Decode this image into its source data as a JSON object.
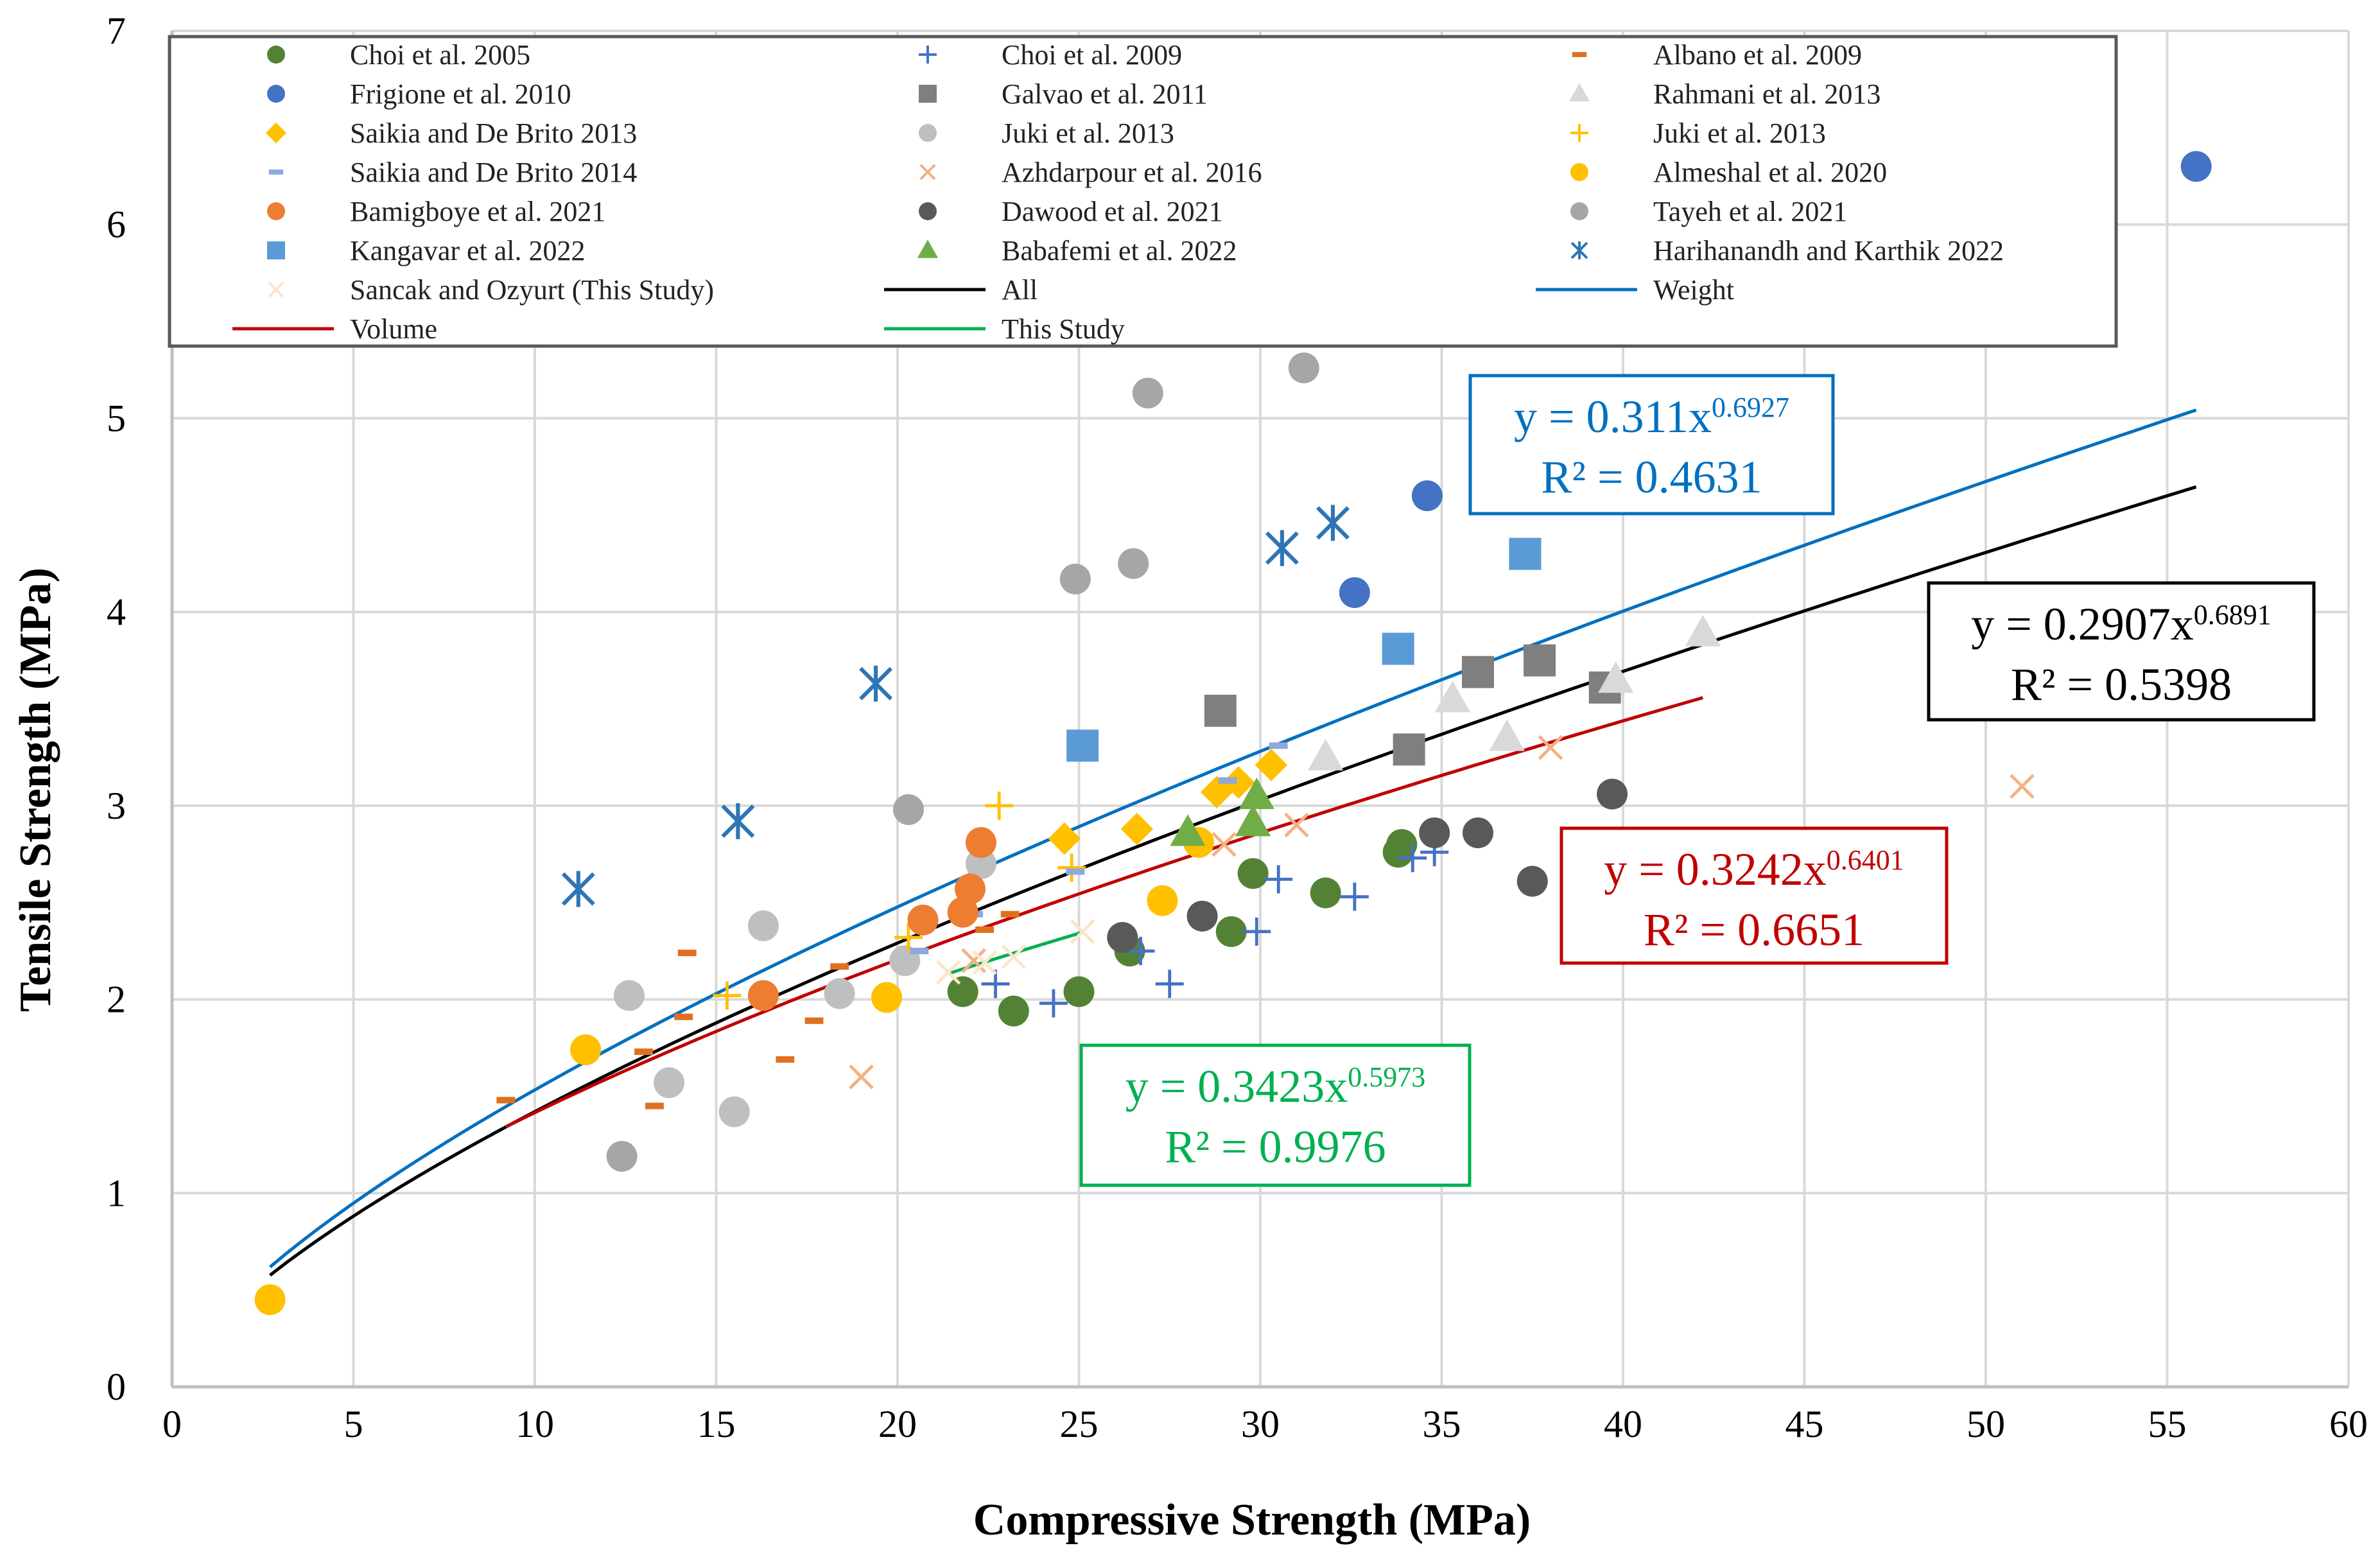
{
  "chart_data": {
    "type": "scatter",
    "xlabel": "Compressive Strength (MPa)",
    "ylabel": "Tensile Strength (MPa)",
    "xlim": [
      0,
      60
    ],
    "ylim": [
      0,
      7
    ],
    "x_ticks": [
      "0",
      "5",
      "10",
      "15",
      "20",
      "25",
      "30",
      "35",
      "40",
      "45",
      "50",
      "55",
      "60"
    ],
    "y_ticks": [
      "0",
      "1",
      "2",
      "3",
      "4",
      "5",
      "6",
      "7"
    ],
    "grid": true,
    "legend": "top",
    "series": [
      {
        "name": "Choi et al. 2005",
        "marker": "circle",
        "color": "#548235",
        "points": [
          [
            21.8,
            2.04
          ],
          [
            23.2,
            1.94
          ],
          [
            25,
            2.04
          ],
          [
            26.4,
            2.25
          ],
          [
            29.2,
            2.35
          ],
          [
            29.8,
            2.65
          ],
          [
            31.8,
            2.55
          ],
          [
            33.8,
            2.76
          ],
          [
            33.9,
            2.8
          ]
        ]
      },
      {
        "name": "Choi et al. 2009",
        "marker": "plus",
        "color": "#4472C4",
        "points": [
          [
            22.7,
            2.08
          ],
          [
            24.3,
            1.98
          ],
          [
            26.7,
            2.25
          ],
          [
            27.5,
            2.08
          ],
          [
            29.9,
            2.35
          ],
          [
            30.5,
            2.62
          ],
          [
            32.6,
            2.53
          ],
          [
            34.2,
            2.73
          ],
          [
            34.8,
            2.76
          ]
        ]
      },
      {
        "name": "Albano et al. 2009",
        "marker": "dash",
        "color": "#E07020",
        "points": [
          [
            9.2,
            1.48
          ],
          [
            13,
            1.73
          ],
          [
            13.3,
            1.45
          ],
          [
            14.1,
            1.91
          ],
          [
            14.2,
            2.24
          ],
          [
            16.9,
            1.69
          ],
          [
            17.7,
            1.89
          ],
          [
            18.4,
            2.17
          ],
          [
            22.4,
            2.36
          ],
          [
            23.1,
            2.44
          ]
        ]
      },
      {
        "name": "Frigione et al. 2010",
        "marker": "circle",
        "color": "#4472C4",
        "points": [
          [
            32.6,
            4.1
          ],
          [
            34.6,
            4.6
          ],
          [
            55.8,
            6.3
          ]
        ]
      },
      {
        "name": "Galvao et al. 2011",
        "marker": "square",
        "color": "#7F7F7F",
        "points": [
          [
            28.9,
            3.49
          ],
          [
            34.1,
            3.29
          ],
          [
            36,
            3.69
          ],
          [
            37.7,
            3.75
          ],
          [
            39.5,
            3.61
          ]
        ]
      },
      {
        "name": "Rahmani et al. 2013",
        "marker": "triangle",
        "color": "#D9D9D9",
        "points": [
          [
            31.8,
            3.25
          ],
          [
            35.3,
            3.55
          ],
          [
            36.8,
            3.35
          ],
          [
            39.8,
            3.65
          ],
          [
            42.2,
            3.89
          ]
        ]
      },
      {
        "name": "Saikia and De Brito 2013",
        "marker": "diamond",
        "color": "#FFC000",
        "points": [
          [
            24.6,
            2.83
          ],
          [
            26.6,
            2.88
          ],
          [
            28.8,
            3.07
          ],
          [
            29.4,
            3.12
          ],
          [
            30.3,
            3.21
          ]
        ]
      },
      {
        "name": "Juki et al. 2013",
        "marker": "circle",
        "color": "#BFBFBF",
        "points": [
          [
            12.6,
            2.02
          ],
          [
            13.7,
            1.57
          ],
          [
            15.5,
            1.42
          ],
          [
            16.3,
            2.38
          ],
          [
            18.4,
            2.03
          ],
          [
            20.2,
            2.2
          ],
          [
            22.3,
            2.7
          ]
        ]
      },
      {
        "name": "Juki et al. 2013",
        "marker": "plus",
        "color": "#FFC000",
        "points": [
          [
            15.3,
            2.02
          ],
          [
            20.3,
            2.32
          ],
          [
            22.8,
            3.0
          ],
          [
            24.8,
            2.68
          ]
        ]
      },
      {
        "name": "Saikia and De Brito 2014",
        "marker": "dash",
        "color": "#8EA9DB",
        "points": [
          [
            20.6,
            2.25
          ],
          [
            22.1,
            2.44
          ],
          [
            24.9,
            2.66
          ],
          [
            29.1,
            3.13
          ],
          [
            30.5,
            3.31
          ]
        ]
      },
      {
        "name": "Azhdarpour et al. 2016",
        "marker": "x",
        "color": "#F4B183",
        "points": [
          [
            19,
            1.6
          ],
          [
            22.1,
            2.2
          ],
          [
            29,
            2.8
          ],
          [
            31,
            2.9
          ],
          [
            38,
            3.3
          ],
          [
            51,
            3.1
          ]
        ]
      },
      {
        "name": "Almeshal et al. 2020",
        "marker": "circle",
        "color": "#FFC000",
        "points": [
          [
            2.7,
            0.45
          ],
          [
            11.4,
            1.74
          ],
          [
            19.7,
            2.01
          ],
          [
            27.3,
            2.51
          ],
          [
            28.3,
            2.81
          ]
        ]
      },
      {
        "name": "Bamigboye et al. 2021",
        "marker": "circle",
        "color": "#ED7D31",
        "points": [
          [
            16.3,
            2.02
          ],
          [
            20.7,
            2.41
          ],
          [
            21.8,
            2.45
          ],
          [
            22,
            2.57
          ],
          [
            22.3,
            2.81
          ]
        ]
      },
      {
        "name": "Dawood et al. 2021",
        "marker": "circle",
        "color": "#595959",
        "points": [
          [
            26.2,
            2.32
          ],
          [
            28.4,
            2.43
          ],
          [
            34.8,
            2.86
          ],
          [
            36,
            2.86
          ],
          [
            37.5,
            2.61
          ],
          [
            39.7,
            3.06
          ]
        ]
      },
      {
        "name": "Tayeh et al. 2021",
        "marker": "circle",
        "color": "#A6A6A6",
        "points": [
          [
            12.4,
            1.19
          ],
          [
            20.3,
            2.98
          ],
          [
            24.9,
            4.17
          ],
          [
            26.5,
            4.25
          ],
          [
            26.9,
            5.13
          ],
          [
            31.2,
            5.26
          ]
        ]
      },
      {
        "name": "Kangavar et al. 2022",
        "marker": "square",
        "color": "#5B9BD5",
        "points": [
          [
            25.1,
            3.31
          ],
          [
            33.8,
            3.81
          ],
          [
            37.3,
            4.3
          ]
        ]
      },
      {
        "name": "Babafemi et al. 2022",
        "marker": "triangle",
        "color": "#70AD47",
        "points": [
          [
            28,
            2.86
          ],
          [
            29.8,
            2.91
          ],
          [
            29.9,
            3.05
          ]
        ]
      },
      {
        "name": "Harihanandh and Karthik 2022",
        "marker": "asterisk",
        "color": "#2E75B6",
        "points": [
          [
            11.2,
            2.57
          ],
          [
            15.6,
            2.92
          ],
          [
            19.4,
            3.63
          ],
          [
            30.6,
            4.33
          ],
          [
            32,
            4.46
          ]
        ]
      },
      {
        "name": "Sancak and Ozyurt (This Study)",
        "marker": "x",
        "color": "#FBE5C8",
        "points": [
          [
            21.4,
            2.14
          ],
          [
            22.4,
            2.19
          ],
          [
            23.2,
            2.22
          ],
          [
            25.1,
            2.35
          ]
        ]
      }
    ],
    "trendlines": [
      {
        "name": "All",
        "color": "#000000",
        "a": 0.2907,
        "b": 0.6891,
        "x_range": [
          2.7,
          55.8
        ],
        "equation": "y = 0.2907x",
        "exponent": "0.6891",
        "r2": "R² = 0.5398"
      },
      {
        "name": "Weight",
        "color": "#0070C0",
        "a": 0.311,
        "b": 0.6927,
        "x_range": [
          2.7,
          55.8
        ],
        "equation": "y = 0.311x",
        "exponent": "0.6927",
        "r2": "R² = 0.4631"
      },
      {
        "name": "Volume",
        "color": "#C00000",
        "a": 0.3242,
        "b": 0.6401,
        "x_range": [
          9.2,
          42.2
        ],
        "equation": "y = 0.3242x",
        "exponent": "0.6401",
        "r2": "R² = 0.6651"
      },
      {
        "name": "This Study",
        "color": "#00B050",
        "a": 0.3423,
        "b": 0.5973,
        "x_range": [
          21.4,
          25.1
        ],
        "equation": "y = 0.3423x",
        "exponent": "0.5973",
        "r2": "R² = 0.9976"
      }
    ]
  }
}
